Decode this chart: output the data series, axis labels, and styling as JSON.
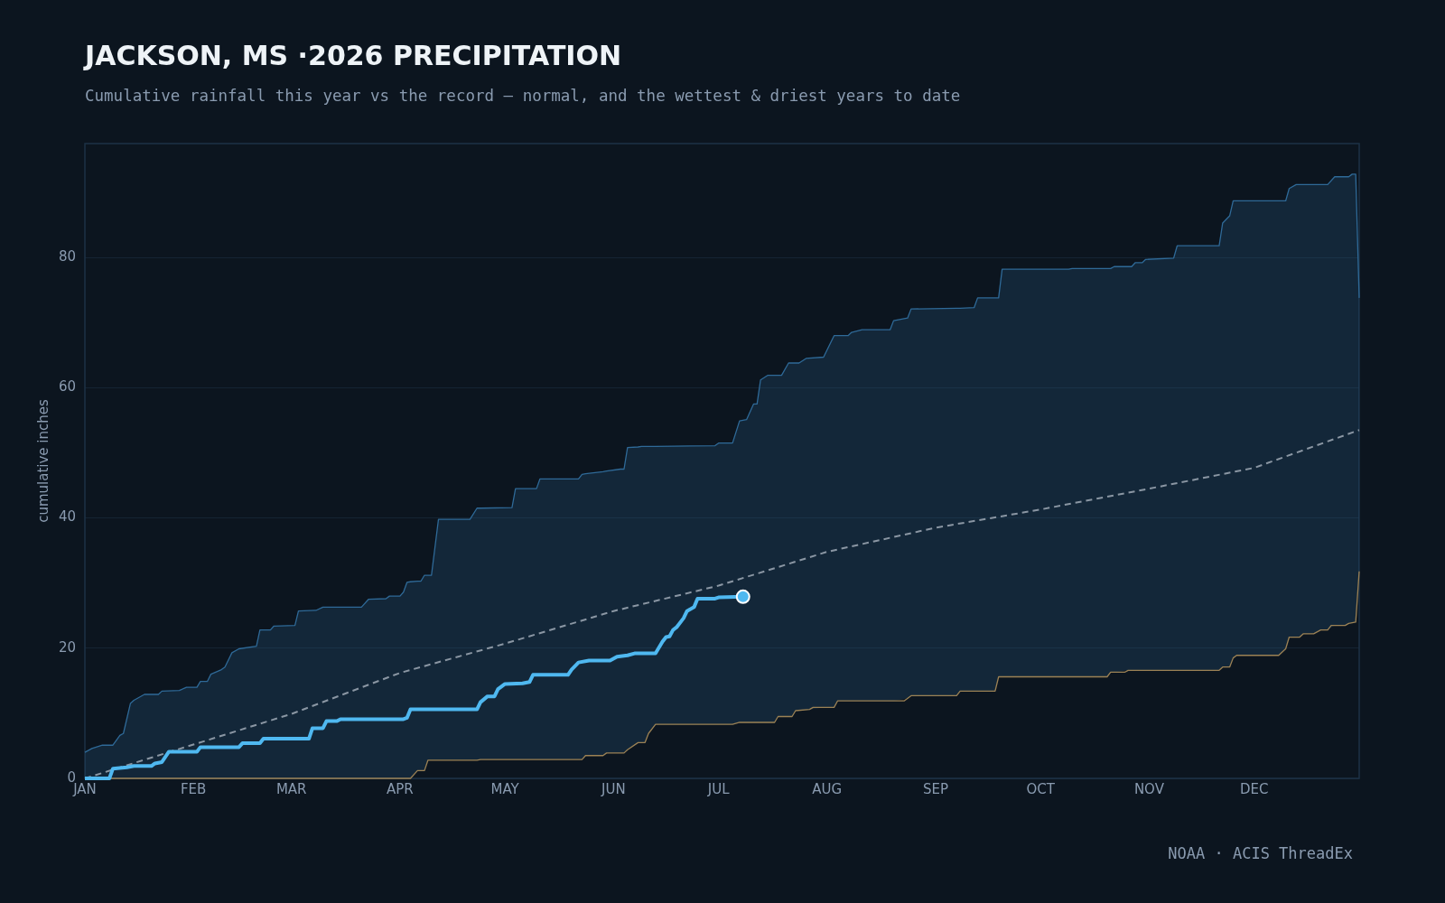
{
  "chart_data": {
    "type": "line",
    "title": "JACKSON, MS ·2026 PRECIPITATION",
    "subtitle": "Cumulative rainfall this year vs the record — normal, and the wettest & driest years to date",
    "ylabel": "cumulative inches",
    "annotations": [
      "NOAA · ACIS ThreadEx"
    ],
    "xlim": [
      "--01-01",
      "--12-31"
    ],
    "xticks": [
      {
        "value": "--01-01",
        "label": "JAN"
      },
      {
        "value": "--02-01",
        "label": "FEB"
      },
      {
        "value": "--03-01",
        "label": "MAR"
      },
      {
        "value": "--04-01",
        "label": "APR"
      },
      {
        "value": "--05-01",
        "label": "MAY"
      },
      {
        "value": "--06-01",
        "label": "JUN"
      },
      {
        "value": "--07-01",
        "label": "JUL"
      },
      {
        "value": "--08-01",
        "label": "AUG"
      },
      {
        "value": "--09-01",
        "label": "SEP"
      },
      {
        "value": "--10-01",
        "label": "OCT"
      },
      {
        "value": "--11-01",
        "label": "NOV"
      },
      {
        "value": "--12-01",
        "label": "DEC"
      }
    ],
    "ylim": [
      0,
      97.5
    ],
    "yticks": [
      0,
      20,
      40,
      60,
      80
    ],
    "grid": "y",
    "legend": false,
    "series": [
      {
        "color": "#2f6a98",
        "x": [
          "--01-01",
          "--01-03",
          "--01-06",
          "--01-09",
          "--01-11",
          "--01-12",
          "--01-14",
          "--01-15",
          "--01-18",
          "--01-22",
          "--01-23",
          "--01-28",
          "--01-30",
          "--02-02",
          "--02-03",
          "--02-05",
          "--02-06",
          "--02-09",
          "--02-10",
          "--02-12",
          "--02-14",
          "--02-19",
          "--02-20",
          "--02-23",
          "--02-24",
          "--03-02",
          "--03-03",
          "--03-08",
          "--03-10",
          "--03-21",
          "--03-23",
          "--03-28",
          "--03-29",
          "--04-01",
          "--04-02",
          "--04-03",
          "--04-04",
          "--04-06",
          "--04-07",
          "--04-08",
          "--04-09",
          "--04-10",
          "--04-12",
          "--04-21",
          "--04-23",
          "--04-24",
          "--05-03",
          "--05-04",
          "--05-10",
          "--05-11",
          "--05-22",
          "--05-23",
          "--05-24",
          "--05-29",
          "--05-30",
          "--06-03",
          "--06-04",
          "--06-05",
          "--06-08",
          "--06-09",
          "--06-10",
          "--06-11",
          "--06-13",
          "--06-30",
          "--07-01",
          "--07-05",
          "--07-07",
          "--07-09",
          "--07-11",
          "--07-12",
          "--07-13",
          "--07-15",
          "--07-17",
          "--07-18",
          "--07-19",
          "--07-21",
          "--07-22",
          "--07-23",
          "--07-24",
          "--07-26",
          "--07-31",
          "--08-03",
          "--08-04",
          "--08-07",
          "--08-08",
          "--08-11",
          "--08-19",
          "--08-20",
          "--08-24",
          "--08-25",
          "--09-07",
          "--09-08",
          "--09-12",
          "--09-13",
          "--09-18",
          "--09-19",
          "--09-20",
          "--10-09",
          "--10-10",
          "--10-20",
          "--10-21",
          "--10-22",
          "--10-26",
          "--10-27",
          "--10-28",
          "--10-30",
          "--10-31",
          "--11-08",
          "--11-09",
          "--11-21",
          "--11-22",
          "--11-24",
          "--11-25",
          "--11-26",
          "--12-08",
          "--12-10",
          "--12-11",
          "--12-13",
          "--12-14",
          "--12-15",
          "--12-18",
          "--12-20",
          "--12-22",
          "--12-24",
          "--12-27",
          "--12-28",
          "--12-29",
          "--12-30",
          "--12-31"
        ],
        "values": [
          4.0,
          4.6,
          5.1,
          5.1,
          6.6,
          6.9,
          11.5,
          12.0,
          12.9,
          12.9,
          13.4,
          13.5,
          14.0,
          14.0,
          14.9,
          14.9,
          16.0,
          16.7,
          17.1,
          19.3,
          19.9,
          20.3,
          22.8,
          22.8,
          23.4,
          23.5,
          25.7,
          25.8,
          26.3,
          26.3,
          27.5,
          27.6,
          28.0,
          28.0,
          28.6,
          30.1,
          30.2,
          30.3,
          30.3,
          31.2,
          31.2,
          31.2,
          39.8,
          39.8,
          41.5,
          41.5,
          41.6,
          44.5,
          44.5,
          46.0,
          46.0,
          46.7,
          46.8,
          47.1,
          47.2,
          47.5,
          47.5,
          50.8,
          50.9,
          51.0,
          51.0,
          51.0,
          51.0,
          51.1,
          51.5,
          51.5,
          54.9,
          55.1,
          57.5,
          57.5,
          61.2,
          61.9,
          61.9,
          61.9,
          61.9,
          63.8,
          63.8,
          63.8,
          63.8,
          64.5,
          64.7,
          68.0,
          68.0,
          68.0,
          68.5,
          68.9,
          68.9,
          70.3,
          70.7,
          72.1,
          72.2,
          72.2,
          72.3,
          73.8,
          73.8,
          73.8,
          78.2,
          78.2,
          78.3,
          78.3,
          78.3,
          78.6,
          78.6,
          78.6,
          79.2,
          79.2,
          79.7,
          79.9,
          81.8,
          81.8,
          85.3,
          86.4,
          88.7,
          88.7,
          88.7,
          88.7,
          90.6,
          91.2,
          91.2,
          91.2,
          91.2,
          91.2,
          91.2,
          92.4,
          92.4,
          92.4,
          92.8,
          92.8,
          73.8
        ],
        "upper": [
          4.0,
          4.6,
          5.1,
          5.1,
          6.6,
          6.9,
          11.5,
          12.0,
          12.9,
          12.9,
          13.4,
          13.5,
          14.0,
          14.0,
          14.9,
          14.9,
          16.0,
          16.7,
          17.1,
          19.3,
          19.9,
          20.3,
          22.8,
          22.8,
          23.4,
          23.5,
          25.7,
          25.8,
          26.3,
          26.3,
          27.5,
          27.6,
          28.0,
          28.0,
          28.6,
          30.1,
          30.2,
          30.3,
          30.3,
          31.2,
          31.2,
          31.2,
          39.8,
          39.8,
          41.5,
          41.5,
          41.6,
          44.5,
          44.5,
          46.0,
          46.0,
          46.7,
          46.8,
          47.1,
          47.2,
          47.5,
          47.5,
          50.8,
          50.9,
          51.0,
          51.0,
          51.0,
          51.0,
          51.1,
          51.5,
          51.5,
          54.9,
          55.1,
          57.5,
          57.5,
          61.2,
          61.9,
          61.9,
          61.9,
          61.9,
          63.8,
          63.8,
          63.8,
          63.8,
          64.5,
          64.7,
          68.0,
          68.0,
          68.0,
          68.5,
          68.9,
          68.9,
          70.3,
          70.7,
          72.1,
          72.2,
          72.2,
          72.3,
          73.8,
          73.8,
          73.8,
          78.2,
          78.2,
          78.3,
          78.3,
          78.3,
          78.6,
          78.6,
          78.6,
          79.2,
          79.2,
          79.7,
          79.9,
          81.8,
          81.8,
          85.3,
          86.4,
          88.7,
          88.7,
          88.7,
          88.7,
          90.6,
          91.2,
          91.2,
          91.2,
          91.2,
          91.2,
          91.2,
          92.4,
          92.4,
          92.4,
          92.8,
          92.8,
          73.8
        ],
        "lower": [
          0,
          0,
          0,
          0,
          0,
          0,
          0,
          0,
          0,
          0,
          0,
          0,
          0,
          0,
          0,
          0,
          0,
          0,
          0,
          0,
          0,
          0,
          0,
          0,
          0,
          0,
          0,
          0,
          0,
          0,
          0,
          0,
          0,
          0,
          0,
          0,
          0,
          1.2,
          1.2,
          1.2,
          2.8,
          2.8,
          2.8,
          2.8,
          2.8,
          2.9,
          2.9,
          2.9,
          2.9,
          2.9,
          2.9,
          2.9,
          3.5,
          3.5,
          3.9,
          3.9,
          3.9,
          4.4,
          5.5,
          5.5,
          5.5,
          6.9,
          8.3,
          8.3,
          8.3,
          8.3,
          8.6,
          8.6,
          8.6,
          8.6,
          8.6,
          8.6,
          8.6,
          9.5,
          9.5,
          9.5,
          9.5,
          10.4,
          10.4,
          10.5,
          10.9,
          10.9,
          11.9,
          11.9,
          11.9,
          11.9,
          11.9,
          11.9,
          12.3,
          12.7,
          12.7,
          13.4,
          13.4,
          13.4,
          13.4,
          15.6,
          15.6,
          15.6,
          15.6,
          15.6,
          16.3,
          16.3,
          16.6,
          16.6,
          16.6,
          16.6,
          16.6,
          16.6,
          16.6,
          16.6,
          17.1,
          17.1,
          18.5,
          18.9,
          18.9,
          19.9,
          21.7,
          21.7,
          21.7,
          22.2,
          22.2,
          22.8,
          22.8,
          23.5,
          23.5,
          23.8,
          23.9,
          24.0,
          31.8
        ]
      },
      {
        "color": "#9c8255",
        "x": [
          "--01-01",
          "--04-04",
          "--04-06",
          "--04-08",
          "--04-09",
          "--04-23",
          "--04-24",
          "--05-23",
          "--05-24",
          "--05-29",
          "--05-30",
          "--06-04",
          "--06-05",
          "--06-08",
          "--06-10",
          "--06-11",
          "--06-13",
          "--07-05",
          "--07-07",
          "--07-17",
          "--07-18",
          "--07-22",
          "--07-23",
          "--07-27",
          "--07-28",
          "--08-03",
          "--08-04",
          "--08-23",
          "--08-25",
          "--09-07",
          "--09-08",
          "--09-18",
          "--09-19",
          "--10-20",
          "--10-21",
          "--10-25",
          "--10-26",
          "--11-21",
          "--11-22",
          "--11-24",
          "--11-25",
          "--11-26",
          "--12-08",
          "--12-10",
          "--12-11",
          "--12-14",
          "--12-15",
          "--12-18",
          "--12-20",
          "--12-22",
          "--12-23",
          "--12-27",
          "--12-28",
          "--12-30",
          "--12-31"
        ],
        "values": [
          0,
          0,
          1.2,
          1.2,
          2.8,
          2.8,
          2.9,
          2.9,
          3.5,
          3.5,
          3.9,
          3.9,
          4.4,
          5.5,
          5.5,
          6.9,
          8.3,
          8.3,
          8.6,
          8.6,
          9.5,
          9.5,
          10.4,
          10.6,
          10.9,
          10.9,
          11.9,
          11.9,
          12.7,
          12.7,
          13.4,
          13.4,
          15.6,
          15.6,
          16.3,
          16.3,
          16.6,
          16.6,
          17.1,
          17.1,
          18.5,
          18.9,
          18.9,
          19.9,
          21.7,
          21.7,
          22.2,
          22.2,
          22.8,
          22.8,
          23.5,
          23.5,
          23.8,
          24.0,
          31.8
        ]
      },
      {
        "color": "#8a96a3",
        "line_style": "dashed",
        "x": [
          "--01-01",
          "--02-01",
          "--03-01",
          "--04-01",
          "--05-01",
          "--06-01",
          "--07-01",
          "--08-01",
          "--09-01",
          "--10-01",
          "--11-01",
          "--12-01",
          "--12-31"
        ],
        "values": [
          0,
          5.2,
          9.9,
          16.2,
          20.7,
          25.7,
          29.6,
          34.8,
          38.5,
          41.3,
          44.5,
          47.7,
          53.5
        ]
      },
      {
        "color": "#4fb8f0",
        "x": [
          "--01-01",
          "--01-08",
          "--01-09",
          "--01-13",
          "--01-15",
          "--01-20",
          "--01-21",
          "--01-23",
          "--01-25",
          "--02-02",
          "--02-03",
          "--02-14",
          "--02-15",
          "--02-20",
          "--02-21",
          "--03-06",
          "--03-07",
          "--03-10",
          "--03-11",
          "--03-14",
          "--03-15",
          "--04-02",
          "--04-03",
          "--04-04",
          "--04-23",
          "--04-24",
          "--04-26",
          "--04-28",
          "--04-29",
          "--05-01",
          "--05-06",
          "--05-08",
          "--05-09",
          "--05-19",
          "--05-20",
          "--05-22",
          "--05-25",
          "--05-31",
          "--06-02",
          "--06-05",
          "--06-07",
          "--06-13",
          "--06-15",
          "--06-16",
          "--06-17",
          "--06-18",
          "--06-19",
          "--06-21",
          "--06-22",
          "--06-24",
          "--06-25",
          "--06-30",
          "--07-01",
          "--07-08"
        ],
        "values": [
          0,
          0,
          1.5,
          1.7,
          1.9,
          1.9,
          2.3,
          2.5,
          4.1,
          4.1,
          4.8,
          4.8,
          5.4,
          5.4,
          6.1,
          6.1,
          7.7,
          7.7,
          8.8,
          8.8,
          9.1,
          9.1,
          9.3,
          10.6,
          10.6,
          11.7,
          12.6,
          12.6,
          13.7,
          14.5,
          14.6,
          14.8,
          15.9,
          15.9,
          16.7,
          17.8,
          18.1,
          18.1,
          18.7,
          18.9,
          19.2,
          19.2,
          21.0,
          21.7,
          21.8,
          22.8,
          23.2,
          24.6,
          25.7,
          26.3,
          27.6,
          27.6,
          27.8,
          27.9
        ]
      },
      {
        "type": "scatter",
        "color": "#4fb8f0",
        "marker": "circle",
        "x": [
          "--07-08"
        ],
        "values": [
          27.9
        ]
      }
    ]
  }
}
